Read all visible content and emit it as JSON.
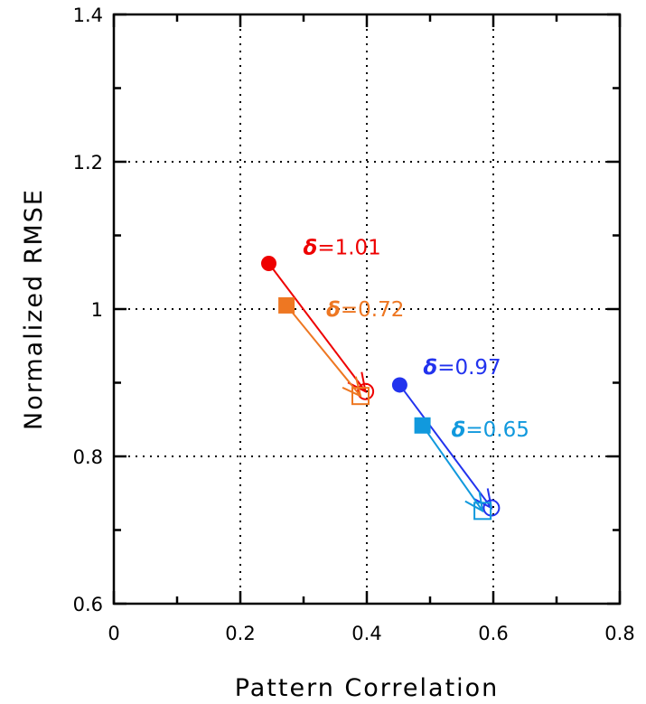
{
  "chart_data": {
    "type": "scatter",
    "xlabel": "Pattern Correlation",
    "ylabel": "Normalized RMSE",
    "xlim": [
      0,
      0.8
    ],
    "ylim": [
      0.6,
      1.4
    ],
    "x_ticks": [
      "0",
      "0.2",
      "0.4",
      "0.6",
      "0.8"
    ],
    "y_ticks": [
      "0.6",
      "0.8",
      "1",
      "1.2",
      "1.4"
    ],
    "x_tick_values": [
      0,
      0.2,
      0.4,
      0.6,
      0.8
    ],
    "y_tick_values": [
      0.6,
      0.8,
      1.0,
      1.2,
      1.4
    ],
    "grid": true,
    "series": [
      {
        "color": "#ee0000",
        "marker": "circle",
        "start": {
          "x": 0.245,
          "y": 1.062
        },
        "end": {
          "x": 0.398,
          "y": 0.888
        },
        "label": "δ=1.01"
      },
      {
        "color": "#ee7722",
        "marker": "square",
        "start": {
          "x": 0.273,
          "y": 1.005
        },
        "end": {
          "x": 0.39,
          "y": 0.882
        },
        "label": "δ=0.72"
      },
      {
        "color": "#2233ee",
        "marker": "circle",
        "start": {
          "x": 0.452,
          "y": 0.897
        },
        "end": {
          "x": 0.597,
          "y": 0.73
        },
        "label": "δ=0.97"
      },
      {
        "color": "#1199dd",
        "marker": "square",
        "start": {
          "x": 0.488,
          "y": 0.842
        },
        "end": {
          "x": 0.583,
          "y": 0.726
        },
        "label": "δ=0.65"
      }
    ]
  }
}
